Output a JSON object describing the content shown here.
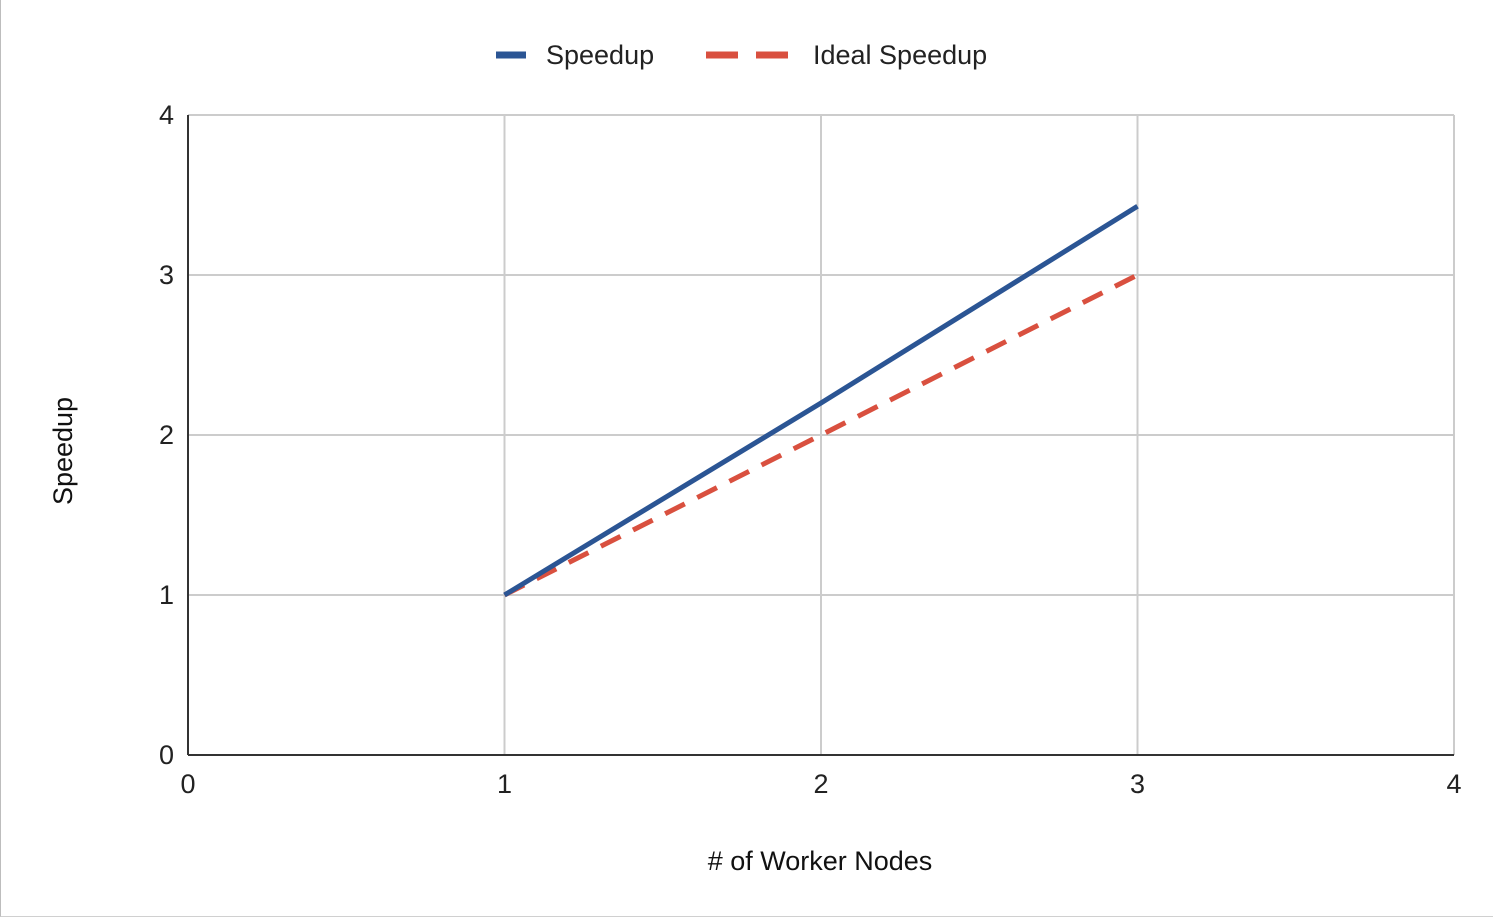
{
  "chart_data": {
    "type": "line",
    "title": "",
    "xlabel": "# of Worker Nodes",
    "ylabel": "Speedup",
    "xlim": [
      0,
      4
    ],
    "ylim": [
      0,
      4
    ],
    "xticks": [
      "0",
      "1",
      "2",
      "3",
      "4"
    ],
    "yticks": [
      "0",
      "1",
      "2",
      "3",
      "4"
    ],
    "grid": true,
    "legend_position": "top-center",
    "series": [
      {
        "name": "Speedup",
        "x": [
          1,
          2,
          3
        ],
        "values": [
          1,
          2.2,
          3.43
        ],
        "color": "#2b5594",
        "dashed": false
      },
      {
        "name": "Ideal Speedup",
        "x": [
          1,
          2,
          3
        ],
        "values": [
          1,
          2,
          3
        ],
        "color": "#d9503f",
        "dashed": true
      }
    ]
  }
}
